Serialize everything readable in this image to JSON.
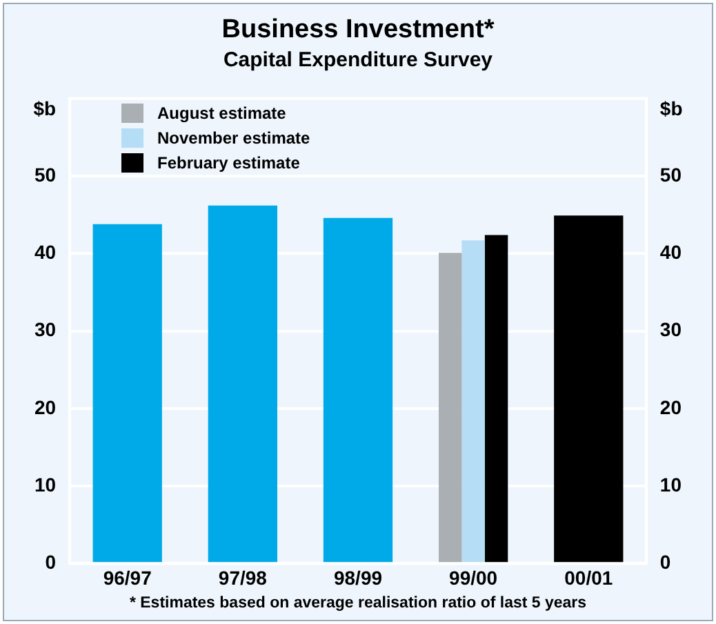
{
  "chart_data": {
    "type": "bar",
    "title": "Business Investment*",
    "subtitle": "Capital Expenditure Survey",
    "ylabel": "$b",
    "y2label": "$b",
    "categories": [
      "96/97",
      "97/98",
      "98/99",
      "99/00",
      "00/01"
    ],
    "series": [
      {
        "color": "#00aae9",
        "values": [
          43.8,
          46.2,
          44.6,
          null,
          null
        ]
      },
      {
        "name": "August estimate",
        "color": "#a9afb2",
        "values": [
          null,
          null,
          null,
          40.1,
          null
        ]
      },
      {
        "name": "November estimate",
        "color": "#b5ddf5",
        "values": [
          null,
          null,
          null,
          41.7,
          null
        ]
      },
      {
        "name": "February estimate",
        "color": "#000000",
        "values": [
          null,
          null,
          null,
          42.4,
          44.9
        ]
      }
    ],
    "ylim": [
      0,
      60
    ],
    "yticks": [
      0,
      10,
      20,
      30,
      40,
      50
    ],
    "y2lim": [
      0,
      60
    ],
    "y2ticks": [
      0,
      10,
      20,
      30,
      40,
      50
    ],
    "grid": "y",
    "legend": "top left",
    "annotations": [
      "* Estimates based on average realisation ratio of last 5 years"
    ]
  }
}
